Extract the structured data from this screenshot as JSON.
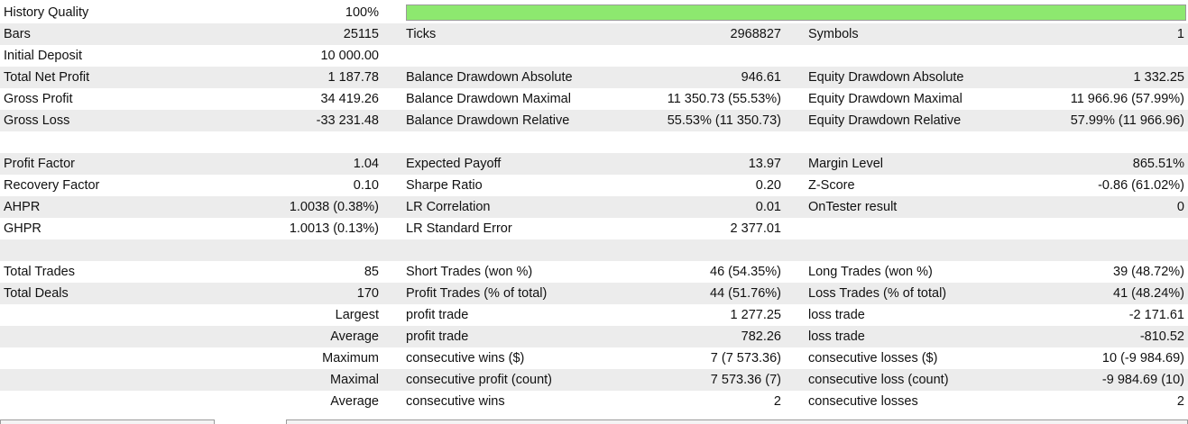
{
  "history_quality": {
    "label": "History Quality",
    "value": "100%",
    "fill_fraction": 1.0,
    "bar_color": "#8de86f"
  },
  "rows": [
    {
      "k1": "Bars",
      "v1": "25115",
      "k2": "Ticks",
      "v2": "2968827",
      "k3": "Symbols",
      "v3": "1",
      "shade": true
    },
    {
      "k1": "Initial Deposit",
      "v1": "10 000.00",
      "k2": "",
      "v2": "",
      "k3": "",
      "v3": "",
      "shade": false
    },
    {
      "k1": "Total Net Profit",
      "v1": "1 187.78",
      "k2": "Balance Drawdown Absolute",
      "v2": "946.61",
      "k3": "Equity Drawdown Absolute",
      "v3": "1 332.25",
      "shade": true
    },
    {
      "k1": "Gross Profit",
      "v1": "34 419.26",
      "k2": "Balance Drawdown Maximal",
      "v2": "11 350.73 (55.53%)",
      "k3": "Equity Drawdown Maximal",
      "v3": "11 966.96 (57.99%)",
      "shade": false
    },
    {
      "k1": "Gross Loss",
      "v1": "-33 231.48",
      "k2": "Balance Drawdown Relative",
      "v2": "55.53% (11 350.73)",
      "k3": "Equity Drawdown Relative",
      "v3": "57.99% (11 966.96)",
      "shade": true
    },
    {
      "blank": true,
      "shade": false
    },
    {
      "k1": "Profit Factor",
      "v1": "1.04",
      "k2": "Expected Payoff",
      "v2": "13.97",
      "k3": "Margin Level",
      "v3": "865.51%",
      "shade": true
    },
    {
      "k1": "Recovery Factor",
      "v1": "0.10",
      "k2": "Sharpe Ratio",
      "v2": "0.20",
      "k3": "Z-Score",
      "v3": "-0.86 (61.02%)",
      "shade": false
    },
    {
      "k1": "AHPR",
      "v1": "1.0038 (0.38%)",
      "k2": "LR Correlation",
      "v2": "0.01",
      "k3": "OnTester result",
      "v3": "0",
      "shade": true
    },
    {
      "k1": "GHPR",
      "v1": "1.0013 (0.13%)",
      "k2": "LR Standard Error",
      "v2": "2 377.01",
      "k3": "",
      "v3": "",
      "shade": false
    },
    {
      "blank": true,
      "shade": true
    },
    {
      "k1": "Total Trades",
      "v1": "85",
      "k2": "Short Trades (won %)",
      "v2": "46 (54.35%)",
      "k3": "Long Trades (won %)",
      "v3": "39 (48.72%)",
      "shade": false
    },
    {
      "k1": "Total Deals",
      "v1": "170",
      "k2": "Profit Trades (% of total)",
      "v2": "44 (51.76%)",
      "k3": "Loss Trades (% of total)",
      "v3": "41 (48.24%)",
      "shade": true
    },
    {
      "k1": "",
      "v1": "Largest",
      "k2": "profit trade",
      "v2": "1 277.25",
      "k3": "loss trade",
      "v3": "-2 171.61",
      "shade": false,
      "v1_label": true
    },
    {
      "k1": "",
      "v1": "Average",
      "k2": "profit trade",
      "v2": "782.26",
      "k3": "loss trade",
      "v3": "-810.52",
      "shade": true,
      "v1_label": true
    },
    {
      "k1": "",
      "v1": "Maximum",
      "k2": "consecutive wins ($)",
      "v2": "7 (7 573.36)",
      "k3": "consecutive losses ($)",
      "v3": "10 (-9 984.69)",
      "shade": false,
      "v1_label": true
    },
    {
      "k1": "",
      "v1": "Maximal",
      "k2": "consecutive profit (count)",
      "v2": "7 573.36 (7)",
      "k3": "consecutive loss (count)",
      "v3": "-9 984.69 (10)",
      "shade": true,
      "v1_label": true
    },
    {
      "k1": "",
      "v1": "Average",
      "k2": "consecutive wins",
      "v2": "2",
      "k3": "consecutive losses",
      "v3": "2",
      "shade": false,
      "v1_label": true
    }
  ]
}
